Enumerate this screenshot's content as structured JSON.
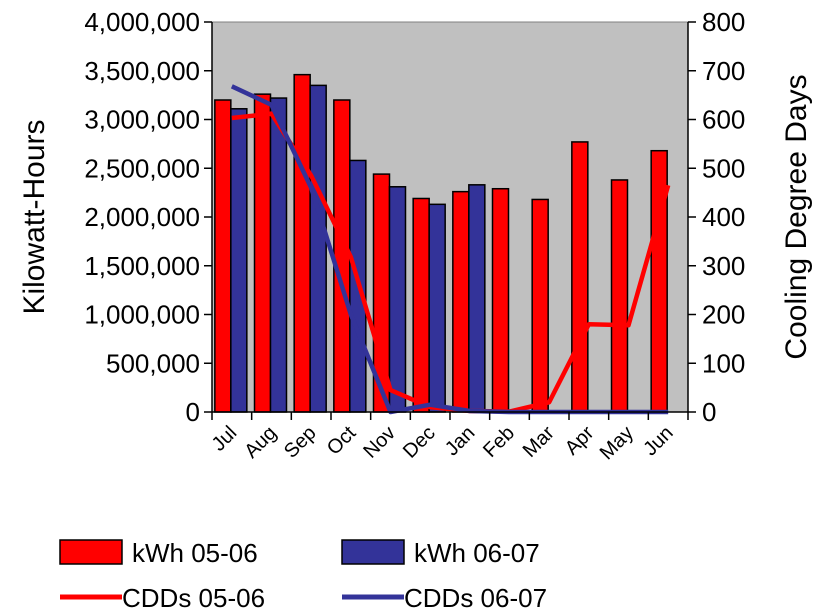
{
  "chart_data": {
    "type": "bar",
    "categories": [
      "Jul",
      "Aug",
      "Sep",
      "Oct",
      "Nov",
      "Dec",
      "Jan",
      "Feb",
      "Mar",
      "Apr",
      "May",
      "Jun"
    ],
    "ylabel": "Kilowatt-Hours",
    "y2label": "Cooling Degree Days",
    "ylim": [
      0,
      4000000
    ],
    "y2lim": [
      0,
      800
    ],
    "yticks": [
      "0",
      "500,000",
      "1,000,000",
      "1,500,000",
      "2,000,000",
      "2,500,000",
      "3,000,000",
      "3,500,000",
      "4,000,000"
    ],
    "y2ticks": [
      "0",
      "100",
      "200",
      "300",
      "400",
      "500",
      "600",
      "700",
      "800"
    ],
    "legend_position": "bottom",
    "plot_background": "#c0c0c0",
    "bar_series": [
      {
        "name": "kWh 05-06",
        "color": "#ff0000",
        "values": [
          3200000,
          3260000,
          3460000,
          3200000,
          2440000,
          2190000,
          2260000,
          2290000,
          2180000,
          2770000,
          2380000,
          2680000
        ]
      },
      {
        "name": "kWh 06-07",
        "color": "#333399",
        "values": [
          3110000,
          3220000,
          3350000,
          2580000,
          2310000,
          2130000,
          2330000,
          null,
          null,
          null,
          null,
          null
        ]
      }
    ],
    "line_series": [
      {
        "name": "CDDs 05-06",
        "color": "#ff0000",
        "axis": "right",
        "values": [
          603,
          612,
          485,
          318,
          45,
          10,
          2,
          1,
          20,
          180,
          178,
          465
        ]
      },
      {
        "name": "CDDs 06-07",
        "color": "#333399",
        "axis": "right",
        "values": [
          668,
          630,
          460,
          200,
          0,
          15,
          2,
          0,
          0,
          0,
          0,
          0
        ]
      }
    ]
  }
}
